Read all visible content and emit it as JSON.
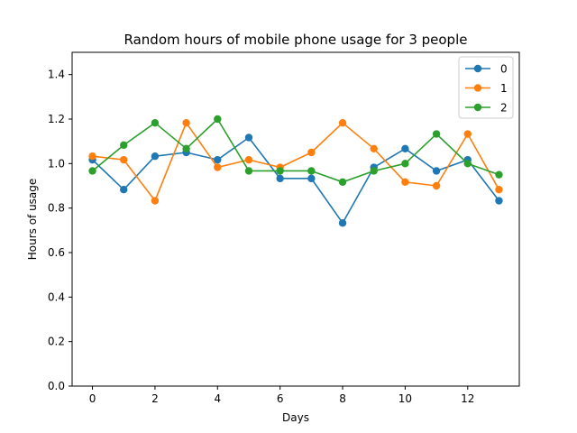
{
  "chart_data": {
    "type": "line",
    "title": "Random hours of mobile phone usage for 3 people",
    "xlabel": "Days",
    "ylabel": "Hours of usage",
    "xlim": [
      -0.65,
      13.65
    ],
    "ylim": [
      0,
      1.5
    ],
    "xticks": [
      0,
      2,
      4,
      6,
      8,
      10,
      12
    ],
    "yticks": [
      0.0,
      0.2,
      0.4,
      0.6,
      0.8,
      1.0,
      1.2,
      1.4
    ],
    "x": [
      0,
      1,
      2,
      3,
      4,
      5,
      6,
      7,
      8,
      9,
      10,
      11,
      12,
      13
    ],
    "grid": false,
    "legend_position": "top-right",
    "series": [
      {
        "name": "0",
        "color": "#1f77b4",
        "values": [
          1.017,
          0.883,
          1.033,
          1.05,
          1.017,
          1.117,
          0.933,
          0.933,
          0.733,
          0.983,
          1.067,
          0.967,
          1.017,
          0.833
        ]
      },
      {
        "name": "1",
        "color": "#ff7f0e",
        "values": [
          1.033,
          1.017,
          0.833,
          1.183,
          0.983,
          1.017,
          0.983,
          1.05,
          1.183,
          1.067,
          0.917,
          0.9,
          1.133,
          0.883
        ]
      },
      {
        "name": "2",
        "color": "#2ca02c",
        "values": [
          0.967,
          1.083,
          1.183,
          1.067,
          1.2,
          0.967,
          0.967,
          0.967,
          0.917,
          0.967,
          1.0,
          1.133,
          1.0,
          0.95
        ]
      }
    ]
  }
}
